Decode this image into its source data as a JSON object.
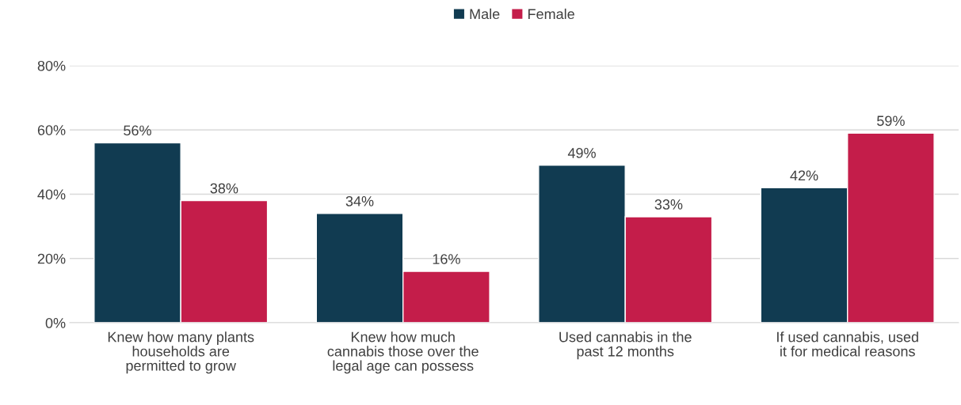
{
  "chart_data": {
    "type": "bar",
    "categories": [
      "Knew how many plants\nhouseholds are\npermitted to grow",
      "Knew how much\ncannabis those over the\nlegal age can possess",
      "Used cannabis in the\npast 12 months",
      "If used cannabis, used\nit for medical reasons"
    ],
    "series": [
      {
        "name": "Male",
        "color": "#113b51",
        "values": [
          56,
          34,
          49,
          42
        ],
        "value_labels": [
          "56%",
          "34%",
          "49%",
          "42%"
        ]
      },
      {
        "name": "Female",
        "color": "#c41d4a",
        "values": [
          38,
          16,
          33,
          59
        ],
        "value_labels": [
          "38%",
          "16%",
          "33%",
          "59%"
        ]
      }
    ],
    "ylim": [
      0,
      80
    ],
    "yticks": [
      {
        "value": 0,
        "label": "0%"
      },
      {
        "value": 20,
        "label": "20%"
      },
      {
        "value": 40,
        "label": "40%"
      },
      {
        "value": 60,
        "label": "60%"
      },
      {
        "value": 80,
        "label": "80%"
      }
    ],
    "grid": "y",
    "legend": "top"
  }
}
